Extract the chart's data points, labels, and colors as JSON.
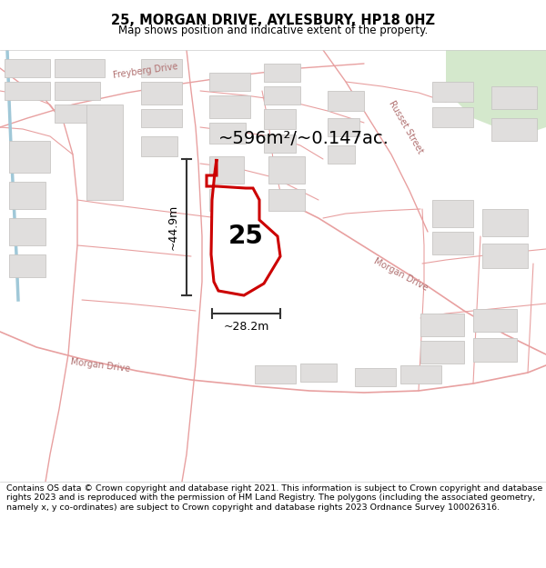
{
  "title": "25, MORGAN DRIVE, AYLESBURY, HP18 0HZ",
  "subtitle": "Map shows position and indicative extent of the property.",
  "area_text": "~596m²/~0.147ac.",
  "dim_width": "~28.2m",
  "dim_height": "~44.9m",
  "property_number": "25",
  "footer": "Contains OS data © Crown copyright and database right 2021. This information is subject to Crown copyright and database rights 2023 and is reproduced with the permission of HM Land Registry. The polygons (including the associated geometry, namely x, y co-ordinates) are subject to Crown copyright and database rights 2023 Ordnance Survey 100026316.",
  "bg_color": "#f7f5f2",
  "map_bg": "#ffffff",
  "property_fill": "#ffffff",
  "property_edge": "#cc0000",
  "road_color": "#e8a0a0",
  "road_color2": "#d09090",
  "building_fill": "#e0dedd",
  "building_edge": "#c8c6c4",
  "title_color": "#000000",
  "footer_color": "#000000",
  "header_bg": "#ffffff",
  "footer_bg": "#ffffff",
  "green_color": "#d4e8cc",
  "dim_line_color": "#333333",
  "street_text_color": "#b07070"
}
